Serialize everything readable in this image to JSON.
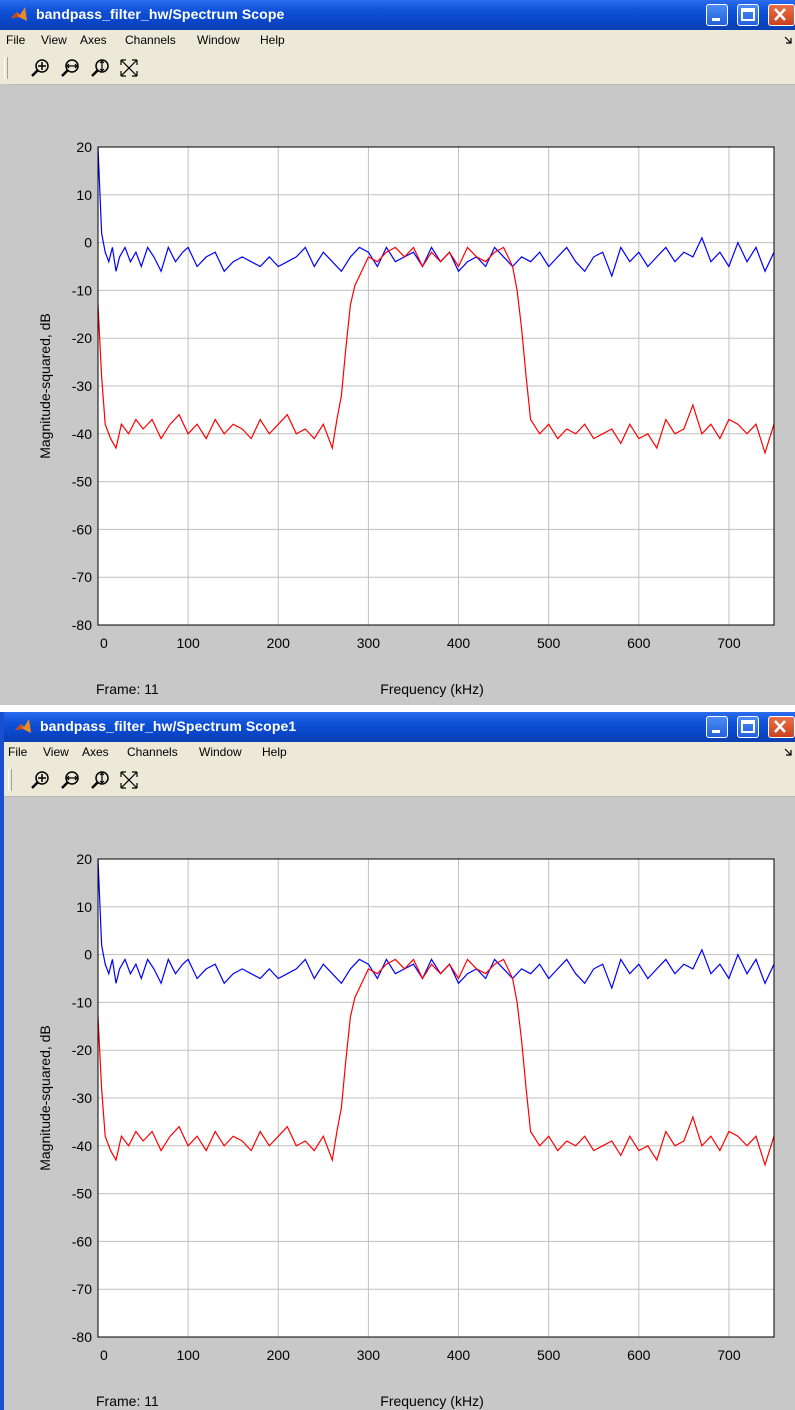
{
  "windows": [
    {
      "title": "bandpass_filter_hw/Spectrum Scope",
      "menu": [
        "File",
        "View",
        "Axes",
        "Channels",
        "Window",
        "Help"
      ],
      "toolbar_icons": [
        "zoom-in-icon",
        "zoom-x-icon",
        "zoom-y-icon",
        "autoscale-icon"
      ],
      "frame_label": "Frame: 11"
    },
    {
      "title": "bandpass_filter_hw/Spectrum Scope1",
      "menu": [
        "File",
        "View",
        "Axes",
        "Channels",
        "Window",
        "Help"
      ],
      "toolbar_icons": [
        "zoom-in-icon",
        "zoom-x-icon",
        "zoom-y-icon",
        "autoscale-icon"
      ],
      "frame_label": "Frame: 11"
    }
  ],
  "colors": {
    "title_bar": "#0a46c8",
    "blue_series": "#0000ff",
    "red_series": "#ff0000",
    "grid": "#c0c0c0"
  },
  "chart_data": [
    {
      "type": "line",
      "xlabel": "Frequency (kHz)",
      "ylabel": "Magnitude-squared, dB",
      "xlim": [
        0,
        750
      ],
      "ylim": [
        -80,
        20
      ],
      "xticks": [
        0,
        100,
        200,
        300,
        400,
        500,
        600,
        700
      ],
      "yticks": [
        20,
        10,
        0,
        -10,
        -20,
        -30,
        -40,
        -50,
        -60,
        -70,
        -80
      ],
      "grid": true,
      "series": [
        {
          "color": "#0000ff",
          "x": [
            0,
            4,
            8,
            12,
            16,
            20,
            24,
            30,
            36,
            42,
            48,
            55,
            62,
            70,
            78,
            86,
            94,
            100,
            110,
            120,
            130,
            140,
            150,
            160,
            170,
            180,
            190,
            200,
            210,
            220,
            230,
            240,
            250,
            260,
            270,
            280,
            290,
            300,
            310,
            320,
            330,
            340,
            350,
            360,
            370,
            380,
            390,
            400,
            410,
            420,
            430,
            440,
            450,
            460,
            470,
            480,
            490,
            500,
            510,
            520,
            530,
            540,
            550,
            560,
            570,
            580,
            590,
            600,
            610,
            620,
            630,
            640,
            650,
            660,
            670,
            680,
            690,
            700,
            710,
            720,
            730,
            740,
            750
          ],
          "y": [
            20,
            2,
            -2,
            -4,
            -1,
            -6,
            -3,
            -1,
            -4,
            -2,
            -5,
            -1,
            -3,
            -6,
            -1,
            -4,
            -2,
            -1,
            -5,
            -3,
            -2,
            -6,
            -4,
            -3,
            -4,
            -5,
            -3,
            -5,
            -4,
            -3,
            -1,
            -5,
            -2,
            -4,
            -6,
            -3,
            -1,
            -2,
            -5,
            -1,
            -4,
            -3,
            -2,
            -5,
            -1,
            -4,
            -2,
            -6,
            -4,
            -3,
            -5,
            -1,
            -3,
            -5,
            -3,
            -4,
            -2,
            -5,
            -3,
            -1,
            -4,
            -6,
            -3,
            -2,
            -7,
            -1,
            -4,
            -2,
            -5,
            -3,
            -1,
            -4,
            -2,
            -3,
            1,
            -4,
            -2,
            -5,
            0,
            -4,
            -1,
            -6,
            -2
          ]
        },
        {
          "color": "#ff0000",
          "x": [
            0,
            4,
            8,
            14,
            20,
            26,
            34,
            42,
            50,
            60,
            70,
            80,
            90,
            100,
            110,
            120,
            130,
            140,
            150,
            160,
            170,
            180,
            190,
            200,
            210,
            220,
            230,
            240,
            250,
            260,
            265,
            270,
            275,
            280,
            285,
            290,
            295,
            300,
            310,
            320,
            330,
            340,
            350,
            360,
            370,
            380,
            390,
            400,
            410,
            420,
            430,
            440,
            450,
            460,
            465,
            470,
            475,
            480,
            490,
            500,
            510,
            520,
            530,
            540,
            550,
            560,
            570,
            580,
            590,
            600,
            610,
            620,
            630,
            640,
            650,
            660,
            670,
            680,
            690,
            700,
            710,
            720,
            730,
            740,
            750
          ],
          "y": [
            -13,
            -28,
            -38,
            -41,
            -43,
            -38,
            -40,
            -37,
            -39,
            -37,
            -41,
            -38,
            -36,
            -40,
            -38,
            -41,
            -37,
            -40,
            -38,
            -39,
            -41,
            -37,
            -40,
            -38,
            -36,
            -40,
            -39,
            -41,
            -38,
            -43,
            -37,
            -32,
            -22,
            -13,
            -9,
            -7,
            -5,
            -3,
            -4,
            -2,
            -1,
            -3,
            -1,
            -5,
            -2,
            -4,
            -2,
            -5,
            -1,
            -3,
            -4,
            -2,
            -1,
            -5,
            -10,
            -18,
            -28,
            -37,
            -40,
            -38,
            -41,
            -39,
            -40,
            -38,
            -41,
            -40,
            -39,
            -42,
            -38,
            -41,
            -40,
            -43,
            -37,
            -40,
            -39,
            -34,
            -40,
            -38,
            -41,
            -37,
            -38,
            -40,
            -38,
            -44,
            -38
          ]
        }
      ]
    },
    {
      "type": "line",
      "xlabel": "Frequency (kHz)",
      "ylabel": "Magnitude-squared, dB",
      "xlim": [
        0,
        750
      ],
      "ylim": [
        -80,
        20
      ],
      "xticks": [
        0,
        100,
        200,
        300,
        400,
        500,
        600,
        700
      ],
      "yticks": [
        20,
        10,
        0,
        -10,
        -20,
        -30,
        -40,
        -50,
        -60,
        -70,
        -80
      ],
      "grid": true,
      "series": [
        {
          "color": "#0000ff",
          "x": [
            0,
            4,
            8,
            12,
            16,
            20,
            24,
            30,
            36,
            42,
            48,
            55,
            62,
            70,
            78,
            86,
            94,
            100,
            110,
            120,
            130,
            140,
            150,
            160,
            170,
            180,
            190,
            200,
            210,
            220,
            230,
            240,
            250,
            260,
            270,
            280,
            290,
            300,
            310,
            320,
            330,
            340,
            350,
            360,
            370,
            380,
            390,
            400,
            410,
            420,
            430,
            440,
            450,
            460,
            470,
            480,
            490,
            500,
            510,
            520,
            530,
            540,
            550,
            560,
            570,
            580,
            590,
            600,
            610,
            620,
            630,
            640,
            650,
            660,
            670,
            680,
            690,
            700,
            710,
            720,
            730,
            740,
            750
          ],
          "y": [
            20,
            2,
            -2,
            -4,
            -1,
            -6,
            -3,
            -1,
            -4,
            -2,
            -5,
            -1,
            -3,
            -6,
            -1,
            -4,
            -2,
            -1,
            -5,
            -3,
            -2,
            -6,
            -4,
            -3,
            -4,
            -5,
            -3,
            -5,
            -4,
            -3,
            -1,
            -5,
            -2,
            -4,
            -6,
            -3,
            -1,
            -2,
            -5,
            -1,
            -4,
            -3,
            -2,
            -5,
            -1,
            -4,
            -2,
            -6,
            -4,
            -3,
            -5,
            -1,
            -3,
            -5,
            -3,
            -4,
            -2,
            -5,
            -3,
            -1,
            -4,
            -6,
            -3,
            -2,
            -7,
            -1,
            -4,
            -2,
            -5,
            -3,
            -1,
            -4,
            -2,
            -3,
            1,
            -4,
            -2,
            -5,
            0,
            -4,
            -1,
            -6,
            -2
          ]
        },
        {
          "color": "#ff0000",
          "x": [
            0,
            4,
            8,
            14,
            20,
            26,
            34,
            42,
            50,
            60,
            70,
            80,
            90,
            100,
            110,
            120,
            130,
            140,
            150,
            160,
            170,
            180,
            190,
            200,
            210,
            220,
            230,
            240,
            250,
            260,
            265,
            270,
            275,
            280,
            285,
            290,
            295,
            300,
            310,
            320,
            330,
            340,
            350,
            360,
            370,
            380,
            390,
            400,
            410,
            420,
            430,
            440,
            450,
            460,
            465,
            470,
            475,
            480,
            490,
            500,
            510,
            520,
            530,
            540,
            550,
            560,
            570,
            580,
            590,
            600,
            610,
            620,
            630,
            640,
            650,
            660,
            670,
            680,
            690,
            700,
            710,
            720,
            730,
            740,
            750
          ],
          "y": [
            -13,
            -28,
            -38,
            -41,
            -43,
            -38,
            -40,
            -37,
            -39,
            -37,
            -41,
            -38,
            -36,
            -40,
            -38,
            -41,
            -37,
            -40,
            -38,
            -39,
            -41,
            -37,
            -40,
            -38,
            -36,
            -40,
            -39,
            -41,
            -38,
            -43,
            -37,
            -32,
            -22,
            -13,
            -9,
            -7,
            -5,
            -3,
            -4,
            -2,
            -1,
            -3,
            -1,
            -5,
            -2,
            -4,
            -2,
            -5,
            -1,
            -3,
            -4,
            -2,
            -1,
            -5,
            -10,
            -18,
            -28,
            -37,
            -40,
            -38,
            -41,
            -39,
            -40,
            -38,
            -41,
            -40,
            -39,
            -42,
            -38,
            -41,
            -40,
            -43,
            -37,
            -40,
            -39,
            -34,
            -40,
            -38,
            -41,
            -37,
            -38,
            -40,
            -38,
            -44,
            -38
          ]
        }
      ]
    }
  ]
}
